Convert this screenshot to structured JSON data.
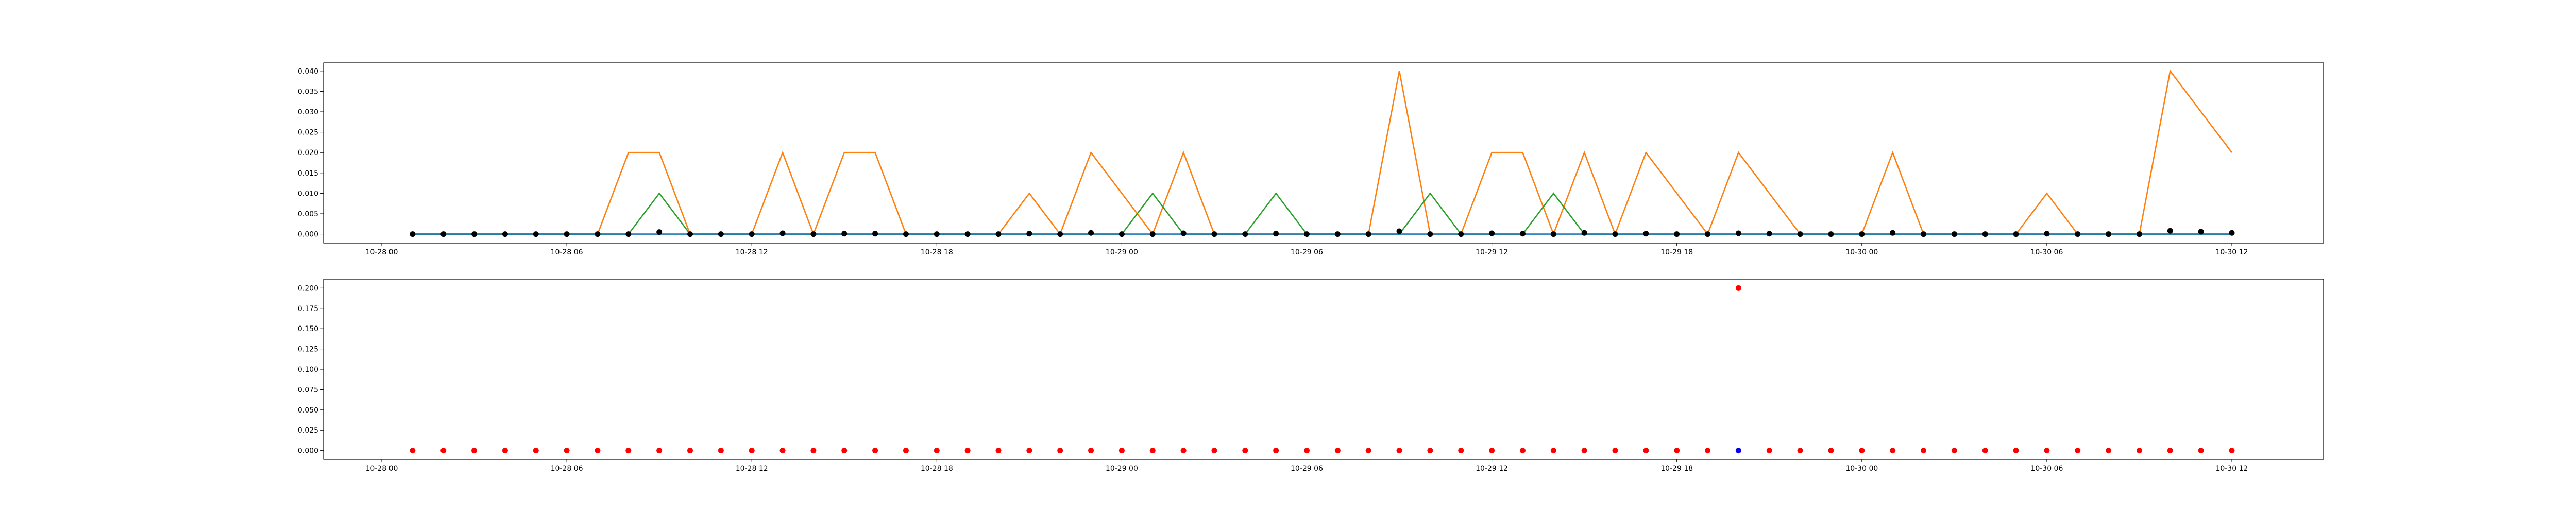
{
  "chart_data": [
    {
      "type": "line",
      "title": "",
      "xlabel": "",
      "ylabel": "",
      "x_ticks": [
        "10-28 00",
        "10-28 06",
        "10-28 12",
        "10-28 18",
        "10-29 00",
        "10-29 06",
        "10-29 12",
        "10-29 18",
        "10-30 00",
        "10-30 06",
        "10-30 12"
      ],
      "y_ticks": [
        "0.000",
        "0.005",
        "0.010",
        "0.015",
        "0.020",
        "0.025",
        "0.030",
        "0.035",
        "0.040"
      ],
      "ylim": [
        -0.0022,
        0.042
      ],
      "x_hours": [
        1,
        2,
        3,
        4,
        5,
        6,
        7,
        8,
        9,
        10,
        11,
        12,
        13,
        14,
        15,
        16,
        17,
        18,
        19,
        20,
        21,
        22,
        23,
        24,
        25,
        26,
        27,
        28,
        29,
        30,
        31,
        32,
        33,
        34,
        35,
        36,
        37,
        38,
        39,
        40,
        41,
        42,
        43,
        44,
        45,
        46,
        47,
        48,
        49,
        50,
        51,
        52,
        53,
        54,
        55,
        56,
        57,
        58,
        59,
        60
      ],
      "series": [
        {
          "color": "#ff7f0e",
          "style": "line",
          "values": [
            0,
            0,
            0,
            0,
            0,
            0,
            0,
            0.02,
            0.02,
            0,
            0,
            0,
            0.02,
            0,
            0.02,
            0.02,
            0,
            0,
            0,
            0,
            0.01,
            0,
            0.02,
            0.01,
            0,
            0.02,
            0,
            0,
            0,
            0,
            0,
            0,
            0.04,
            0,
            0,
            0.02,
            0.02,
            0,
            0.02,
            0,
            0.02,
            0.01,
            0,
            0.02,
            0.01,
            0,
            0,
            0,
            0.02,
            0,
            0,
            0,
            0,
            0.01,
            0,
            0,
            0,
            0.04,
            0.03,
            0.02
          ]
        },
        {
          "color": "#2ca02c",
          "style": "line",
          "values": [
            0,
            0,
            0,
            0,
            0,
            0,
            0,
            0,
            0.01,
            0,
            0,
            0,
            0,
            0,
            0,
            0,
            0,
            0,
            0,
            0,
            0,
            0,
            0,
            0,
            0.01,
            0,
            0,
            0,
            0.01,
            0,
            0,
            0,
            0,
            0.01,
            0,
            0,
            0,
            0.01,
            0,
            0,
            0,
            0,
            0,
            0,
            0,
            0,
            0,
            0,
            0,
            0,
            0,
            0,
            0,
            0,
            0,
            0,
            0,
            0,
            0,
            0
          ]
        },
        {
          "color": "#1f77b4",
          "style": "line",
          "values": [
            0,
            0,
            0,
            0,
            0,
            0,
            0,
            0,
            0,
            0,
            0,
            0,
            0,
            0,
            0,
            0,
            0,
            0,
            0,
            0,
            0,
            0,
            0,
            0,
            0,
            0,
            0,
            0,
            0,
            0,
            0,
            0,
            0,
            0,
            0,
            0,
            0,
            0,
            0,
            0,
            0,
            0,
            0,
            0,
            0,
            0,
            0,
            0,
            0,
            0,
            0,
            0,
            0,
            0,
            0,
            0,
            0,
            0,
            0,
            0
          ]
        },
        {
          "color": "#000000",
          "style": "points",
          "values": [
            0,
            0,
            0,
            0,
            0,
            0,
            0,
            0,
            0.0005,
            0,
            0,
            0,
            0.0002,
            0,
            0.0001,
            0.0001,
            0,
            0,
            0,
            0,
            0.0001,
            0,
            0.0003,
            0,
            0,
            0.0002,
            0,
            0,
            0.0001,
            0,
            0,
            0,
            0.0007,
            0,
            0,
            0.0002,
            0.0001,
            0,
            0.0003,
            0,
            0.0001,
            0,
            0,
            0.0002,
            0.0001,
            0,
            0,
            0,
            0.0003,
            0,
            0,
            0,
            0,
            0.0001,
            0,
            0,
            0,
            0.0008,
            0.0006,
            0.0003
          ]
        }
      ]
    },
    {
      "type": "scatter",
      "title": "",
      "xlabel": "",
      "ylabel": "",
      "x_ticks": [
        "10-28 00",
        "10-28 06",
        "10-28 12",
        "10-28 18",
        "10-29 00",
        "10-29 06",
        "10-29 12",
        "10-29 18",
        "10-30 00",
        "10-30 06",
        "10-30 12"
      ],
      "y_ticks": [
        "0.000",
        "0.025",
        "0.050",
        "0.075",
        "0.100",
        "0.125",
        "0.150",
        "0.175",
        "0.200"
      ],
      "ylim": [
        -0.011,
        0.211
      ],
      "x_hours": [
        1,
        2,
        3,
        4,
        5,
        6,
        7,
        8,
        9,
        10,
        11,
        12,
        13,
        14,
        15,
        16,
        17,
        18,
        19,
        20,
        21,
        22,
        23,
        24,
        25,
        26,
        27,
        28,
        29,
        30,
        31,
        32,
        33,
        34,
        35,
        36,
        37,
        38,
        39,
        40,
        41,
        42,
        43,
        44,
        45,
        46,
        47,
        48,
        49,
        50,
        51,
        52,
        53,
        54,
        55,
        56,
        57,
        58,
        59,
        60
      ],
      "series": [
        {
          "color": "#ff0000",
          "style": "points",
          "values": [
            0,
            0,
            0,
            0,
            0,
            0,
            0,
            0,
            0,
            0,
            0,
            0,
            0,
            0,
            0,
            0,
            0,
            0,
            0,
            0,
            0,
            0,
            0,
            0,
            0,
            0,
            0,
            0,
            0,
            0,
            0,
            0,
            0,
            0,
            0,
            0,
            0,
            0,
            0,
            0,
            0,
            0,
            0,
            0,
            0,
            0,
            0,
            0,
            0,
            0,
            0,
            0,
            0,
            0,
            0,
            0,
            0,
            0,
            0,
            0
          ]
        },
        {
          "color": "#ff0000",
          "style": "points",
          "x_hours": [
            44
          ],
          "values": [
            0.2
          ]
        },
        {
          "color": "#0000ff",
          "style": "points",
          "x_hours": [
            44
          ],
          "values": [
            0
          ]
        }
      ]
    }
  ]
}
